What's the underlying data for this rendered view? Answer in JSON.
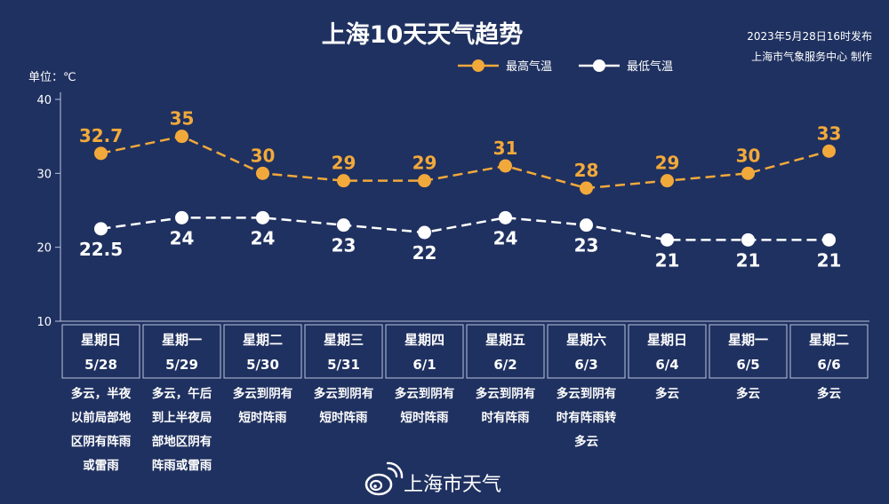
{
  "header": {
    "title": "上海10天天气趋势",
    "publish_time": "2023年5月28日16时发布",
    "producer": "上海市气象服务中心 制作"
  },
  "footer": {
    "brand": "上海市天气",
    "logo_icon": "weibo-icon"
  },
  "chart_data": {
    "type": "line",
    "title": "上海10天天气趋势",
    "unit_label": "单位：℃",
    "ylim": [
      10,
      40
    ],
    "yticks": [
      10,
      20,
      30,
      40
    ],
    "legend_position": "top-center",
    "categories": [
      "5/28",
      "5/29",
      "5/30",
      "5/31",
      "6/1",
      "6/2",
      "6/3",
      "6/4",
      "6/5",
      "6/6"
    ],
    "weekdays": [
      "星期日",
      "星期一",
      "星期二",
      "星期三",
      "星期四",
      "星期五",
      "星期六",
      "星期日",
      "星期一",
      "星期二"
    ],
    "weather": [
      [
        "多云，半夜",
        "以前局部地",
        "区阴有阵雨",
        "或雷雨"
      ],
      [
        "多云，午后",
        "到上半夜局",
        "部地区阴有",
        "阵雨或雷雨"
      ],
      [
        "多云到阴有",
        "短时阵雨"
      ],
      [
        "多云到阴有",
        "短时阵雨"
      ],
      [
        "多云到阴有",
        "短时阵雨"
      ],
      [
        "多云到阴有",
        "时有阵雨"
      ],
      [
        "多云到阴有",
        "时有阵雨转",
        "多云"
      ],
      [
        "多云"
      ],
      [
        "多云"
      ],
      [
        "多云"
      ]
    ],
    "series": [
      {
        "name": "最高气温",
        "color": "#f2a93b",
        "values": [
          32.7,
          35,
          30,
          29,
          29,
          31,
          28,
          29,
          30,
          33
        ],
        "value_labels": [
          "32.7",
          "35",
          "30",
          "29",
          "29",
          "31",
          "28",
          "29",
          "30",
          "33"
        ]
      },
      {
        "name": "最低气温",
        "color": "#ffffff",
        "values": [
          22.5,
          24,
          24,
          23,
          22,
          24,
          23,
          21,
          21,
          21
        ],
        "value_labels": [
          "22.5",
          "24",
          "24",
          "23",
          "22",
          "24",
          "23",
          "21",
          "21",
          "21"
        ]
      }
    ]
  }
}
